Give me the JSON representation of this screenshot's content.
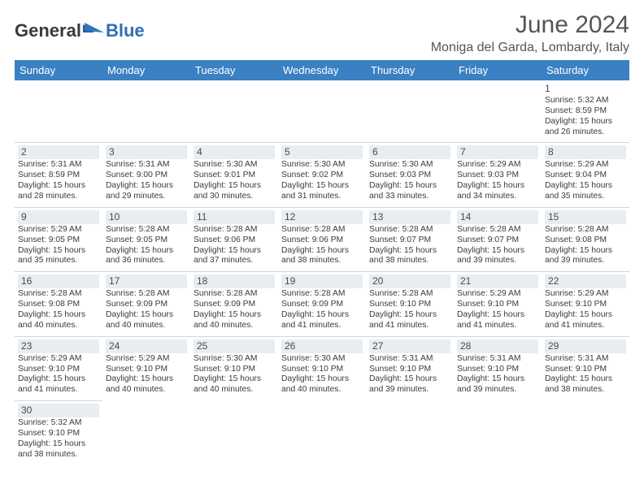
{
  "colors": {
    "header_bg": "#3a80c3",
    "header_text": "#ffffff",
    "logo_gray": "#3a3a3a",
    "logo_blue": "#2f6fb3",
    "title_color": "#555555",
    "cell_text": "#333333",
    "daynum_bg": "#e8edf2",
    "row_divider": "#d0d6dc",
    "page_bg": "#ffffff"
  },
  "logo": {
    "text1": "General",
    "text2": "Blue"
  },
  "title": "June 2024",
  "location": "Moniga del Garda, Lombardy, Italy",
  "day_headers": [
    "Sunday",
    "Monday",
    "Tuesday",
    "Wednesday",
    "Thursday",
    "Friday",
    "Saturday"
  ],
  "weeks": [
    [
      null,
      null,
      null,
      null,
      null,
      null,
      {
        "n": "1",
        "sr": "Sunrise: 5:32 AM",
        "ss": "Sunset: 8:59 PM",
        "d1": "Daylight: 15 hours",
        "d2": "and 26 minutes."
      }
    ],
    [
      {
        "n": "2",
        "sr": "Sunrise: 5:31 AM",
        "ss": "Sunset: 8:59 PM",
        "d1": "Daylight: 15 hours",
        "d2": "and 28 minutes."
      },
      {
        "n": "3",
        "sr": "Sunrise: 5:31 AM",
        "ss": "Sunset: 9:00 PM",
        "d1": "Daylight: 15 hours",
        "d2": "and 29 minutes."
      },
      {
        "n": "4",
        "sr": "Sunrise: 5:30 AM",
        "ss": "Sunset: 9:01 PM",
        "d1": "Daylight: 15 hours",
        "d2": "and 30 minutes."
      },
      {
        "n": "5",
        "sr": "Sunrise: 5:30 AM",
        "ss": "Sunset: 9:02 PM",
        "d1": "Daylight: 15 hours",
        "d2": "and 31 minutes."
      },
      {
        "n": "6",
        "sr": "Sunrise: 5:30 AM",
        "ss": "Sunset: 9:03 PM",
        "d1": "Daylight: 15 hours",
        "d2": "and 33 minutes."
      },
      {
        "n": "7",
        "sr": "Sunrise: 5:29 AM",
        "ss": "Sunset: 9:03 PM",
        "d1": "Daylight: 15 hours",
        "d2": "and 34 minutes."
      },
      {
        "n": "8",
        "sr": "Sunrise: 5:29 AM",
        "ss": "Sunset: 9:04 PM",
        "d1": "Daylight: 15 hours",
        "d2": "and 35 minutes."
      }
    ],
    [
      {
        "n": "9",
        "sr": "Sunrise: 5:29 AM",
        "ss": "Sunset: 9:05 PM",
        "d1": "Daylight: 15 hours",
        "d2": "and 35 minutes."
      },
      {
        "n": "10",
        "sr": "Sunrise: 5:28 AM",
        "ss": "Sunset: 9:05 PM",
        "d1": "Daylight: 15 hours",
        "d2": "and 36 minutes."
      },
      {
        "n": "11",
        "sr": "Sunrise: 5:28 AM",
        "ss": "Sunset: 9:06 PM",
        "d1": "Daylight: 15 hours",
        "d2": "and 37 minutes."
      },
      {
        "n": "12",
        "sr": "Sunrise: 5:28 AM",
        "ss": "Sunset: 9:06 PM",
        "d1": "Daylight: 15 hours",
        "d2": "and 38 minutes."
      },
      {
        "n": "13",
        "sr": "Sunrise: 5:28 AM",
        "ss": "Sunset: 9:07 PM",
        "d1": "Daylight: 15 hours",
        "d2": "and 38 minutes."
      },
      {
        "n": "14",
        "sr": "Sunrise: 5:28 AM",
        "ss": "Sunset: 9:07 PM",
        "d1": "Daylight: 15 hours",
        "d2": "and 39 minutes."
      },
      {
        "n": "15",
        "sr": "Sunrise: 5:28 AM",
        "ss": "Sunset: 9:08 PM",
        "d1": "Daylight: 15 hours",
        "d2": "and 39 minutes."
      }
    ],
    [
      {
        "n": "16",
        "sr": "Sunrise: 5:28 AM",
        "ss": "Sunset: 9:08 PM",
        "d1": "Daylight: 15 hours",
        "d2": "and 40 minutes."
      },
      {
        "n": "17",
        "sr": "Sunrise: 5:28 AM",
        "ss": "Sunset: 9:09 PM",
        "d1": "Daylight: 15 hours",
        "d2": "and 40 minutes."
      },
      {
        "n": "18",
        "sr": "Sunrise: 5:28 AM",
        "ss": "Sunset: 9:09 PM",
        "d1": "Daylight: 15 hours",
        "d2": "and 40 minutes."
      },
      {
        "n": "19",
        "sr": "Sunrise: 5:28 AM",
        "ss": "Sunset: 9:09 PM",
        "d1": "Daylight: 15 hours",
        "d2": "and 41 minutes."
      },
      {
        "n": "20",
        "sr": "Sunrise: 5:28 AM",
        "ss": "Sunset: 9:10 PM",
        "d1": "Daylight: 15 hours",
        "d2": "and 41 minutes."
      },
      {
        "n": "21",
        "sr": "Sunrise: 5:29 AM",
        "ss": "Sunset: 9:10 PM",
        "d1": "Daylight: 15 hours",
        "d2": "and 41 minutes."
      },
      {
        "n": "22",
        "sr": "Sunrise: 5:29 AM",
        "ss": "Sunset: 9:10 PM",
        "d1": "Daylight: 15 hours",
        "d2": "and 41 minutes."
      }
    ],
    [
      {
        "n": "23",
        "sr": "Sunrise: 5:29 AM",
        "ss": "Sunset: 9:10 PM",
        "d1": "Daylight: 15 hours",
        "d2": "and 41 minutes."
      },
      {
        "n": "24",
        "sr": "Sunrise: 5:29 AM",
        "ss": "Sunset: 9:10 PM",
        "d1": "Daylight: 15 hours",
        "d2": "and 40 minutes."
      },
      {
        "n": "25",
        "sr": "Sunrise: 5:30 AM",
        "ss": "Sunset: 9:10 PM",
        "d1": "Daylight: 15 hours",
        "d2": "and 40 minutes."
      },
      {
        "n": "26",
        "sr": "Sunrise: 5:30 AM",
        "ss": "Sunset: 9:10 PM",
        "d1": "Daylight: 15 hours",
        "d2": "and 40 minutes."
      },
      {
        "n": "27",
        "sr": "Sunrise: 5:31 AM",
        "ss": "Sunset: 9:10 PM",
        "d1": "Daylight: 15 hours",
        "d2": "and 39 minutes."
      },
      {
        "n": "28",
        "sr": "Sunrise: 5:31 AM",
        "ss": "Sunset: 9:10 PM",
        "d1": "Daylight: 15 hours",
        "d2": "and 39 minutes."
      },
      {
        "n": "29",
        "sr": "Sunrise: 5:31 AM",
        "ss": "Sunset: 9:10 PM",
        "d1": "Daylight: 15 hours",
        "d2": "and 38 minutes."
      }
    ],
    [
      {
        "n": "30",
        "sr": "Sunrise: 5:32 AM",
        "ss": "Sunset: 9:10 PM",
        "d1": "Daylight: 15 hours",
        "d2": "and 38 minutes."
      },
      null,
      null,
      null,
      null,
      null,
      null
    ]
  ]
}
